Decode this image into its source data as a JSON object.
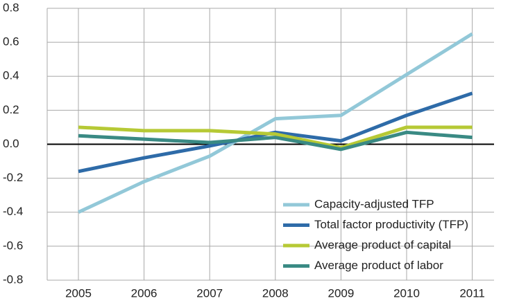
{
  "chart_data": {
    "type": "line",
    "categories": [
      "2005",
      "2006",
      "2007",
      "2008",
      "2009",
      "2010",
      "2011"
    ],
    "series": [
      {
        "name": "Capacity-adjusted TFP",
        "color": "#92c8d8",
        "values": [
          -0.4,
          -0.22,
          -0.07,
          0.15,
          0.17,
          0.41,
          0.65
        ]
      },
      {
        "name": "Total factor productivity (TFP)",
        "color": "#2e6ba8",
        "values": [
          -0.16,
          -0.08,
          -0.01,
          0.07,
          0.02,
          0.17,
          0.3
        ]
      },
      {
        "name": "Average product of capital",
        "color": "#b6c935",
        "values": [
          0.1,
          0.08,
          0.08,
          0.06,
          -0.02,
          0.1,
          0.1
        ]
      },
      {
        "name": "Average product of labor",
        "color": "#3a8a84",
        "values": [
          0.05,
          0.03,
          0.01,
          0.04,
          -0.03,
          0.07,
          0.04
        ]
      }
    ],
    "ylim": [
      -0.8,
      0.8
    ],
    "yticks": [
      -0.8,
      -0.6,
      -0.4,
      -0.2,
      {
        "value": 0,
        "label": "0.0"
      },
      0.2,
      0.4,
      0.6,
      0.8
    ],
    "grid": true,
    "legend": "lower right"
  }
}
